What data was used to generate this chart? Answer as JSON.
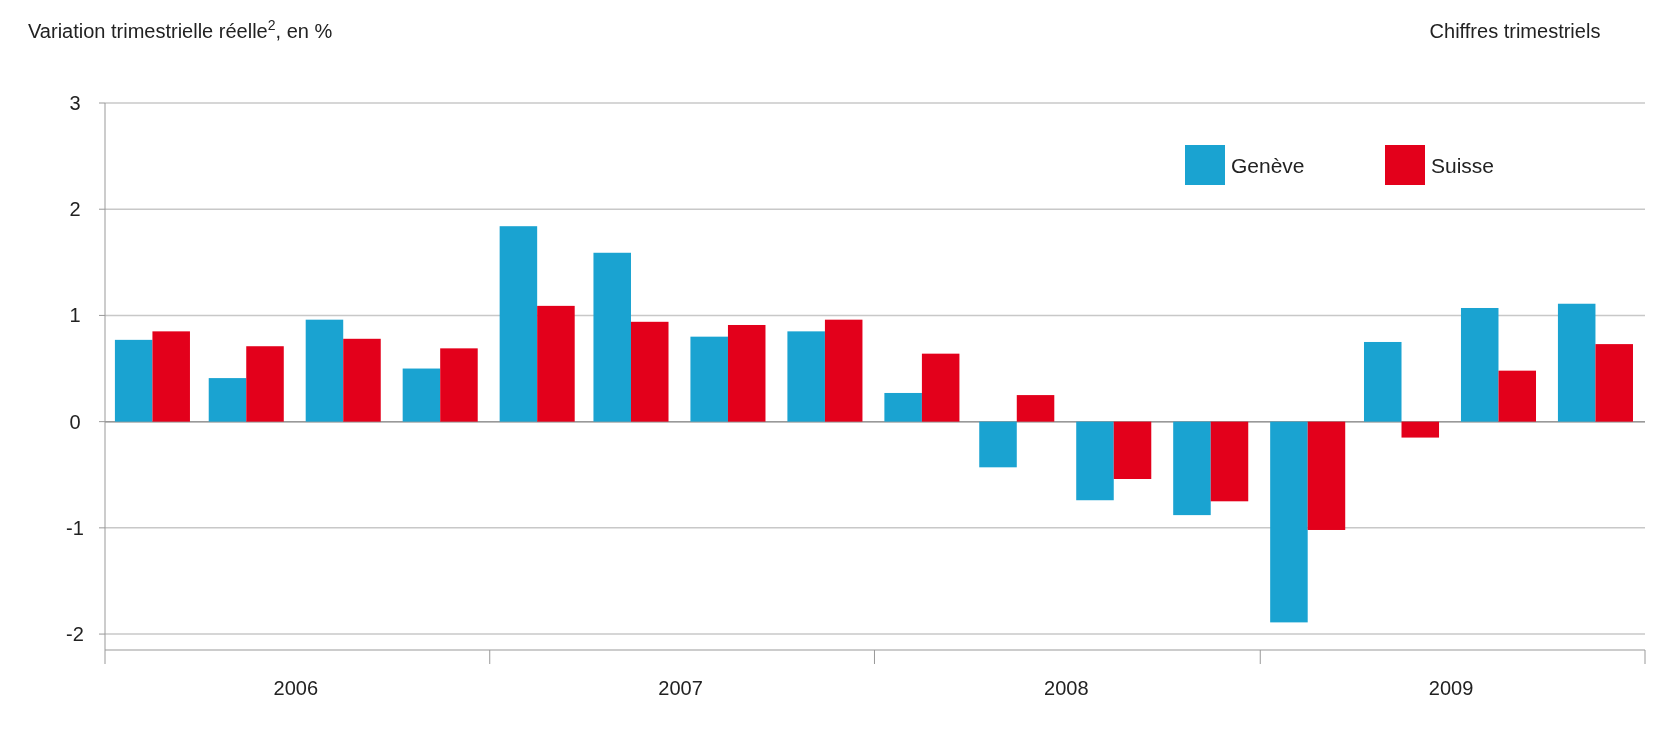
{
  "chart_data": {
    "type": "bar",
    "ylabel": "Variation trimestrielle réelle$^{2}$, en %",
    "annotations": [
      "Chiffres trimestriels"
    ],
    "x": [
      "2006-02-15",
      "2006-05-15",
      "2006-08-15",
      "2006-11-15",
      "2007-02-15",
      "2007-05-15",
      "2007-08-15",
      "2007-11-15",
      "2008-02-15",
      "2008-05-15",
      "2008-08-15",
      "2008-11-15",
      "2009-02-15",
      "2009-05-15",
      "2009-08-15",
      "2009-11-15"
    ],
    "series": [
      {
        "name": "Genève",
        "color": "#1aa3d1",
        "values": [
          0.77,
          0.41,
          0.96,
          0.5,
          1.84,
          1.59,
          0.8,
          0.85,
          0.27,
          -0.43,
          -0.74,
          -0.88,
          -1.89,
          0.75,
          1.07,
          1.11
        ]
      },
      {
        "name": "Suisse",
        "color": "#e3001b",
        "values": [
          0.85,
          0.71,
          0.78,
          0.69,
          1.09,
          0.94,
          0.91,
          0.96,
          0.64,
          0.25,
          -0.54,
          -0.75,
          -1.02,
          -0.15,
          0.48,
          0.73
        ]
      }
    ],
    "xlim": [
      "2006-01-01",
      "2010-01-01"
    ],
    "xticks": [
      {
        "value": "2006-01-01",
        "label": null
      },
      {
        "value": "2006-07-01",
        "label": "2006"
      },
      {
        "value": "2007-01-01",
        "label": null
      },
      {
        "value": "2007-07-01",
        "label": "2007"
      },
      {
        "value": "2008-01-01",
        "label": null
      },
      {
        "value": "2008-07-01",
        "label": "2008"
      },
      {
        "value": "2009-01-01",
        "label": null
      },
      {
        "value": "2009-07-01",
        "label": "2009"
      },
      {
        "value": "2010-01-01",
        "label": null
      }
    ],
    "ylim": [
      -2.15,
      3
    ],
    "yticks": [
      -2,
      -1,
      0,
      1,
      2,
      3
    ],
    "grid": "y",
    "legend": "top right"
  }
}
